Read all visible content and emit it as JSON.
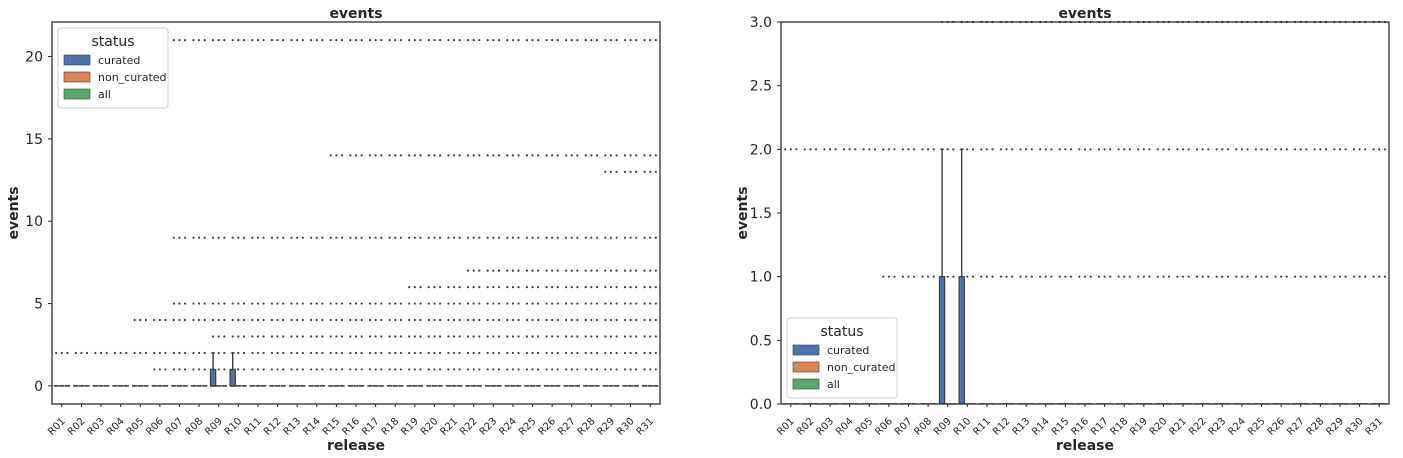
{
  "colors": {
    "curated": "#4c72b0",
    "non_curated": "#dd8452",
    "all": "#55a868",
    "axes": "#262626",
    "flier": "#3d3d3d",
    "median": "#3d3d3d"
  },
  "chart_data": [
    {
      "type": "box",
      "title": "events",
      "xlabel": "release",
      "ylabel": "events",
      "ylim": [
        -1.1,
        22.1
      ],
      "yticks": [
        0,
        5,
        10,
        15,
        20
      ],
      "ytick_labels": [
        "0",
        "5",
        "10",
        "15",
        "20"
      ],
      "categories": [
        "R01",
        "R02",
        "R03",
        "R04",
        "R05",
        "R06",
        "R07",
        "R08",
        "R09",
        "R10",
        "R11",
        "R12",
        "R13",
        "R14",
        "R15",
        "R16",
        "R17",
        "R18",
        "R19",
        "R20",
        "R21",
        "R22",
        "R23",
        "R24",
        "R25",
        "R26",
        "R27",
        "R28",
        "R29",
        "R30",
        "R31"
      ],
      "legend": {
        "title": "status",
        "entries": [
          "curated",
          "non_curated",
          "all"
        ],
        "placement": "upper left"
      },
      "boxes": [
        {
          "category": "R09",
          "series": "curated",
          "q1": 0,
          "median": 0,
          "q3": 1,
          "whisker_high": 2
        },
        {
          "category": "R10",
          "series": "curated",
          "q1": 0,
          "median": 0,
          "q3": 1,
          "whisker_high": 2
        }
      ],
      "outlier_levels": [
        {
          "value": 21,
          "first_category": "R07"
        },
        {
          "value": 14,
          "first_category": "R15"
        },
        {
          "value": 13,
          "first_category": "R29"
        },
        {
          "value": 9,
          "first_category": "R07"
        },
        {
          "value": 7,
          "first_category": "R22"
        },
        {
          "value": 6,
          "first_category": "R19"
        },
        {
          "value": 5,
          "first_category": "R07"
        },
        {
          "value": 4,
          "first_category": "R05"
        },
        {
          "value": 3,
          "first_category": "R09"
        },
        {
          "value": 2,
          "first_category": "R01"
        },
        {
          "value": 1,
          "first_category": "R06"
        }
      ]
    },
    {
      "type": "box",
      "title": "events",
      "xlabel": "release",
      "ylabel": "events",
      "ylim": [
        0,
        3.0
      ],
      "yticks": [
        0.0,
        0.5,
        1.0,
        1.5,
        2.0,
        2.5,
        3.0
      ],
      "ytick_labels": [
        "0.0",
        "0.5",
        "1.0",
        "1.5",
        "2.0",
        "2.5",
        "3.0"
      ],
      "categories": [
        "R01",
        "R02",
        "R03",
        "R04",
        "R05",
        "R06",
        "R07",
        "R08",
        "R09",
        "R10",
        "R11",
        "R12",
        "R13",
        "R14",
        "R15",
        "R16",
        "R17",
        "R18",
        "R19",
        "R20",
        "R21",
        "R22",
        "R23",
        "R24",
        "R25",
        "R26",
        "R27",
        "R28",
        "R29",
        "R30",
        "R31"
      ],
      "legend": {
        "title": "status",
        "entries": [
          "curated",
          "non_curated",
          "all"
        ],
        "placement": "lower left"
      },
      "boxes": [
        {
          "category": "R09",
          "series": "curated",
          "q1": 0,
          "median": 0,
          "q3": 1,
          "whisker_high": 2
        },
        {
          "category": "R10",
          "series": "curated",
          "q1": 0,
          "median": 0,
          "q3": 1,
          "whisker_high": 2
        }
      ],
      "outlier_levels": [
        {
          "value": 3,
          "first_category": "R09"
        },
        {
          "value": 2,
          "first_category": "R01"
        },
        {
          "value": 1,
          "first_category": "R06"
        }
      ]
    }
  ]
}
